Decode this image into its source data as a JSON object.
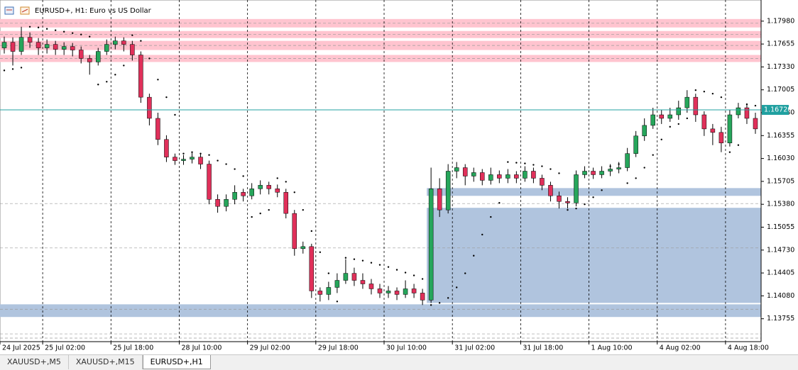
{
  "chart_data": {
    "type": "candlestick",
    "title": "EURUSD+, H1:  Euro vs US Dollar",
    "up_color": "#26a65b",
    "down_color": "#e0305a",
    "open": [
      1.176,
      1.1768,
      1.1755,
      1.1775,
      1.1768,
      1.176,
      1.1765,
      1.1758,
      1.1762,
      1.1757,
      1.1745,
      1.174,
      1.1755,
      1.1765,
      1.177,
      1.1765,
      1.175,
      1.169,
      1.166,
      1.163,
      1.1605,
      1.16,
      1.1602,
      1.1605,
      1.1595,
      1.1545,
      1.1535,
      1.1545,
      1.1555,
      1.155,
      1.156,
      1.1565,
      1.156,
      1.1555,
      1.1525,
      1.1475,
      1.1478,
      1.1415,
      1.141,
      1.142,
      1.143,
      1.144,
      1.143,
      1.1425,
      1.1418,
      1.1412,
      1.1415,
      1.141,
      1.1418,
      1.1412,
      1.1402,
      1.156,
      1.153,
      1.1585,
      1.159,
      1.1578,
      1.1583,
      1.1572,
      1.158,
      1.1575,
      1.158,
      1.1575,
      1.1585,
      1.1575,
      1.1565,
      1.155,
      1.1542,
      1.154,
      1.158,
      1.1585,
      1.158,
      1.1585,
      1.1588,
      1.159,
      1.161,
      1.1635,
      1.165,
      1.1665,
      1.166,
      1.1665,
      1.1675,
      1.169,
      1.1665,
      1.1645,
      1.164,
      1.1625,
      1.1665,
      1.1675,
      1.166
    ],
    "high": [
      1.1776,
      1.1775,
      1.179,
      1.1782,
      1.1774,
      1.1772,
      1.177,
      1.1768,
      1.1767,
      1.1762,
      1.175,
      1.176,
      1.1772,
      1.1776,
      1.1775,
      1.177,
      1.1755,
      1.1695,
      1.1668,
      1.1636,
      1.161,
      1.1608,
      1.1612,
      1.161,
      1.16,
      1.1552,
      1.1552,
      1.1565,
      1.156,
      1.1568,
      1.1572,
      1.157,
      1.1566,
      1.156,
      1.153,
      1.1485,
      1.1482,
      1.142,
      1.1428,
      1.144,
      1.146,
      1.1448,
      1.144,
      1.1432,
      1.1425,
      1.1422,
      1.142,
      1.143,
      1.1425,
      1.1418,
      1.159,
      1.1575,
      1.1595,
      1.1598,
      1.1595,
      1.159,
      1.1588,
      1.159,
      1.1586,
      1.1588,
      1.1585,
      1.1592,
      1.159,
      1.158,
      1.157,
      1.1556,
      1.1548,
      1.1586,
      1.1592,
      1.159,
      1.1592,
      1.1595,
      1.1598,
      1.1618,
      1.1642,
      1.166,
      1.1675,
      1.1672,
      1.1675,
      1.1685,
      1.17,
      1.1695,
      1.167,
      1.1652,
      1.1648,
      1.1672,
      1.1682,
      1.168,
      1.1668
    ],
    "low": [
      1.1752,
      1.1735,
      1.175,
      1.176,
      1.175,
      1.1752,
      1.175,
      1.175,
      1.1748,
      1.1738,
      1.1722,
      1.1735,
      1.175,
      1.1758,
      1.1755,
      1.1742,
      1.1682,
      1.165,
      1.1622,
      1.1598,
      1.1594,
      1.1594,
      1.1596,
      1.1588,
      1.1538,
      1.1526,
      1.1528,
      1.1538,
      1.1542,
      1.1545,
      1.1552,
      1.1552,
      1.1548,
      1.1518,
      1.1465,
      1.1468,
      1.1405,
      1.14,
      1.1402,
      1.1412,
      1.1425,
      1.1422,
      1.1418,
      1.141,
      1.1405,
      1.1405,
      1.1402,
      1.1405,
      1.1405,
      1.1395,
      1.1398,
      1.152,
      1.1525,
      1.1575,
      1.1565,
      1.157,
      1.1565,
      1.1566,
      1.1568,
      1.1568,
      1.1568,
      1.157,
      1.1568,
      1.1558,
      1.1542,
      1.1532,
      1.1532,
      1.1535,
      1.1575,
      1.1574,
      1.1575,
      1.1578,
      1.1582,
      1.1585,
      1.1605,
      1.1628,
      1.1645,
      1.1652,
      1.1655,
      1.1658,
      1.1668,
      1.1655,
      1.1635,
      1.1622,
      1.1612,
      1.162,
      1.166,
      1.1652,
      1.1638
    ],
    "close": [
      1.1768,
      1.1755,
      1.1775,
      1.1768,
      1.176,
      1.1765,
      1.1758,
      1.1762,
      1.1757,
      1.1745,
      1.174,
      1.1755,
      1.1765,
      1.177,
      1.1765,
      1.175,
      1.169,
      1.166,
      1.163,
      1.1605,
      1.16,
      1.1602,
      1.1605,
      1.1595,
      1.1545,
      1.1535,
      1.1545,
      1.1555,
      1.155,
      1.156,
      1.1565,
      1.156,
      1.1555,
      1.1525,
      1.1475,
      1.1478,
      1.1415,
      1.141,
      1.142,
      1.143,
      1.144,
      1.143,
      1.1425,
      1.1418,
      1.1412,
      1.1415,
      1.141,
      1.1418,
      1.1412,
      1.1402,
      1.156,
      1.153,
      1.1585,
      1.159,
      1.1578,
      1.1583,
      1.1572,
      1.158,
      1.1575,
      1.158,
      1.1575,
      1.1585,
      1.1575,
      1.1565,
      1.155,
      1.1542,
      1.154,
      1.158,
      1.1585,
      1.158,
      1.1585,
      1.1588,
      1.159,
      1.161,
      1.1635,
      1.165,
      1.1665,
      1.166,
      1.1665,
      1.1675,
      1.169,
      1.1665,
      1.1645,
      1.164,
      1.1625,
      1.1665,
      1.1675,
      1.166,
      1.1645
    ],
    "sar": [
      1.1728,
      1.173,
      1.1732,
      1.179,
      1.1789,
      1.1787,
      1.1785,
      1.1783,
      1.1781,
      1.1779,
      1.1776,
      1.1708,
      1.1712,
      1.1722,
      1.1735,
      1.1778,
      1.177,
      1.1745,
      1.1715,
      1.169,
      1.1665,
      1.161,
      1.1612,
      1.161,
      1.1608,
      1.16,
      1.1595,
      1.1588,
      1.1578,
      1.152,
      1.1525,
      1.153,
      1.1575,
      1.157,
      1.1555,
      1.153,
      1.15,
      1.147,
      1.144,
      1.14,
      1.1462,
      1.146,
      1.1458,
      1.1455,
      1.1452,
      1.1449,
      1.1445,
      1.1441,
      1.1437,
      1.1432,
      1.1395,
      1.1398,
      1.1405,
      1.142,
      1.144,
      1.1465,
      1.1495,
      1.152,
      1.154,
      1.1598,
      1.1597,
      1.1596,
      1.1594,
      1.1592,
      1.1588,
      1.1582,
      1.153,
      1.1532,
      1.1538,
      1.1548,
      1.1558,
      1.1592,
      1.1595,
      1.1568,
      1.1575,
      1.159,
      1.1608,
      1.163,
      1.1648,
      1.1652,
      1.166,
      1.17,
      1.1698,
      1.1695,
      1.169,
      1.1612,
      1.1622,
      1.168,
      1.1678
    ],
    "zones": [
      {
        "low": 1.1789,
        "high": 1.1801,
        "x_from": 0,
        "color": "#ffc4cf"
      },
      {
        "low": 1.1774,
        "high": 1.1784,
        "x_from": 0,
        "color": "#ffc4cf"
      },
      {
        "low": 1.1757,
        "high": 1.177,
        "x_from": 0,
        "color": "#ffc4cf"
      },
      {
        "low": 1.174,
        "high": 1.175,
        "x_from": 0,
        "color": "#ffc4cf"
      },
      {
        "low": 1.155,
        "high": 1.1561,
        "x_from": 50,
        "color": "#b0c4de"
      },
      {
        "low": 1.1398,
        "high": 1.1533,
        "x_from": 50,
        "color": "#b0c4de"
      },
      {
        "low": 1.1378,
        "high": 1.1396,
        "x_from": 0,
        "color": "#b0c4de"
      }
    ],
    "levels": [
      1.1795,
      1.1779,
      1.17635,
      1.1745,
      1.1539,
      1.1476,
      1.1389,
      1.1354,
      1.1348
    ],
    "current_price": {
      "value": 1.1672,
      "label": "1.16720"
    },
    "ylim": [
      1.1343,
      1.1828
    ],
    "yticks": [
      {
        "value": 1.1798,
        "label": "1.17980"
      },
      {
        "value": 1.17655,
        "label": "1.17655"
      },
      {
        "value": 1.1733,
        "label": "1.17330"
      },
      {
        "value": 1.17005,
        "label": "1.17005"
      },
      {
        "value": 1.1668,
        "label": "1.16680"
      },
      {
        "value": 1.16355,
        "label": "1.16355"
      },
      {
        "value": 1.1603,
        "label": "1.16030"
      },
      {
        "value": 1.15705,
        "label": "1.15705"
      },
      {
        "value": 1.1538,
        "label": "1.15380"
      },
      {
        "value": 1.15055,
        "label": "1.15055"
      },
      {
        "value": 1.1473,
        "label": "1.14730"
      },
      {
        "value": 1.14405,
        "label": "1.14405"
      },
      {
        "value": 1.1408,
        "label": "1.14080"
      },
      {
        "value": 1.13755,
        "label": "1.13755"
      }
    ],
    "xlim": [
      0,
      89
    ],
    "xticks": [
      {
        "value": 0,
        "label": "24 Jul 2025"
      },
      {
        "value": 5,
        "label": "25 Jul 02:00"
      },
      {
        "value": 13,
        "label": "25 Jul 18:00"
      },
      {
        "value": 21,
        "label": "28 Jul 10:00"
      },
      {
        "value": 29,
        "label": "29 Jul 02:00"
      },
      {
        "value": 37,
        "label": "29 Jul 18:00"
      },
      {
        "value": 45,
        "label": "30 Jul 10:00"
      },
      {
        "value": 53,
        "label": "31 Jul 02:00"
      },
      {
        "value": 61,
        "label": "31 Jul 18:00"
      },
      {
        "value": 69,
        "label": "1 Aug 10:00"
      },
      {
        "value": 77,
        "label": "4 Aug 02:00"
      },
      {
        "value": 85,
        "label": "4 Aug 18:00"
      }
    ]
  },
  "tabs": [
    "XAUUSD+,M5",
    "XAUUSD+,M15",
    "EURUSD+,H1"
  ],
  "active_tab": 2
}
